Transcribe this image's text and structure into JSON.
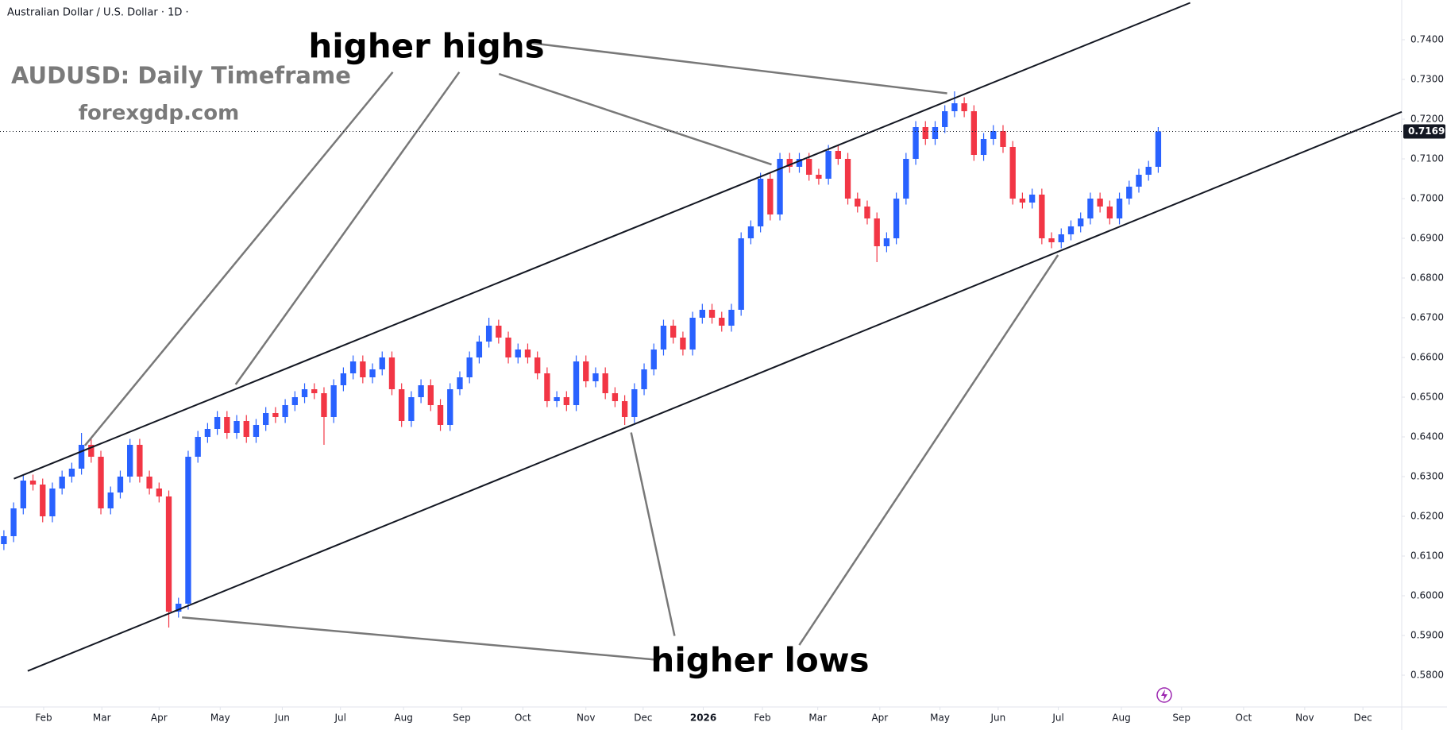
{
  "chart_data": {
    "type": "candlestick",
    "header": "Australian Dollar / U.S. Dollar · 1D ·",
    "title": "AUDUSD: Daily Timeframe",
    "subtitle": "forexgdp.com",
    "annotations": [
      "higher highs",
      "higher lows"
    ],
    "up_color": "#2962ff",
    "down_color": "#f23645",
    "grid": false,
    "open": [
      0.613,
      0.615,
      0.622,
      0.629,
      0.628,
      0.62,
      0.627,
      0.63,
      0.632,
      0.638,
      0.635,
      0.622,
      0.626,
      0.63,
      0.638,
      0.63,
      0.627,
      0.625,
      0.596,
      0.598,
      0.635,
      0.64,
      0.642,
      0.645,
      0.641,
      0.644,
      0.64,
      0.643,
      0.646,
      0.645,
      0.648,
      0.65,
      0.652,
      0.651,
      0.645,
      0.653,
      0.656,
      0.659,
      0.655,
      0.657,
      0.66,
      0.652,
      0.644,
      0.65,
      0.653,
      0.648,
      0.643,
      0.652,
      0.655,
      0.66,
      0.664,
      0.668,
      0.665,
      0.66,
      0.662,
      0.66,
      0.656,
      0.649,
      0.65,
      0.648,
      0.659,
      0.654,
      0.656,
      0.651,
      0.649,
      0.645,
      0.652,
      0.657,
      0.662,
      0.668,
      0.665,
      0.662,
      0.67,
      0.672,
      0.67,
      0.668,
      0.672,
      0.69,
      0.693,
      0.705,
      0.696,
      0.71,
      0.708,
      0.71,
      0.706,
      0.705,
      0.712,
      0.71,
      0.7,
      0.698,
      0.695,
      0.688,
      0.69,
      0.7,
      0.71,
      0.718,
      0.715,
      0.718,
      0.722,
      0.724,
      0.722,
      0.711,
      0.715,
      0.717,
      0.713,
      0.7,
      0.699,
      0.701,
      0.69,
      0.689,
      0.691,
      0.693,
      0.695,
      0.7,
      0.698,
      0.695,
      0.7,
      0.703,
      0.706,
      0.708
    ],
    "high": [
      0.6165,
      0.6235,
      0.6305,
      0.6305,
      0.6295,
      0.6285,
      0.6315,
      0.6335,
      0.641,
      0.6395,
      0.6365,
      0.6275,
      0.6315,
      0.6395,
      0.6395,
      0.6315,
      0.6285,
      0.6265,
      0.5995,
      0.6365,
      0.6415,
      0.6435,
      0.6465,
      0.6465,
      0.6455,
      0.6455,
      0.6445,
      0.6475,
      0.6475,
      0.6495,
      0.6515,
      0.6535,
      0.6535,
      0.6525,
      0.6545,
      0.6575,
      0.6605,
      0.6605,
      0.6585,
      0.6615,
      0.6615,
      0.6535,
      0.6515,
      0.6545,
      0.6545,
      0.6495,
      0.6535,
      0.6565,
      0.6615,
      0.6655,
      0.67,
      0.6695,
      0.6665,
      0.6635,
      0.6635,
      0.6615,
      0.6575,
      0.6515,
      0.6515,
      0.6605,
      0.6605,
      0.6575,
      0.6575,
      0.6525,
      0.6505,
      0.6535,
      0.6585,
      0.6635,
      0.6695,
      0.6695,
      0.6665,
      0.6715,
      0.6735,
      0.6735,
      0.6715,
      0.6735,
      0.6915,
      0.6945,
      0.7065,
      0.7065,
      0.7115,
      0.7115,
      0.7115,
      0.7115,
      0.7075,
      0.7135,
      0.7135,
      0.7115,
      0.7015,
      0.6995,
      0.6965,
      0.6915,
      0.7015,
      0.7115,
      0.7195,
      0.7195,
      0.7195,
      0.7235,
      0.727,
      0.7255,
      0.7235,
      0.7165,
      0.7185,
      0.7185,
      0.7145,
      0.7015,
      0.7025,
      0.7025,
      0.6915,
      0.6925,
      0.6945,
      0.6965,
      0.7015,
      0.7015,
      0.6995,
      0.7015,
      0.7045,
      0.7075,
      0.7095,
      0.718
    ],
    "low": [
      0.6115,
      0.6135,
      0.6205,
      0.6265,
      0.6185,
      0.6185,
      0.6255,
      0.6285,
      0.6305,
      0.6335,
      0.6205,
      0.6205,
      0.6245,
      0.6285,
      0.6285,
      0.6255,
      0.6235,
      0.592,
      0.5945,
      0.5965,
      0.6335,
      0.6385,
      0.6405,
      0.6395,
      0.6395,
      0.6385,
      0.6385,
      0.6415,
      0.6435,
      0.6435,
      0.6465,
      0.6485,
      0.6495,
      0.638,
      0.6435,
      0.6515,
      0.6545,
      0.6535,
      0.6535,
      0.6555,
      0.6505,
      0.6425,
      0.6425,
      0.6485,
      0.6465,
      0.6415,
      0.6415,
      0.6505,
      0.6535,
      0.6585,
      0.6625,
      0.6635,
      0.6585,
      0.6585,
      0.6585,
      0.6545,
      0.6475,
      0.6475,
      0.6465,
      0.6465,
      0.6525,
      0.6525,
      0.6495,
      0.6475,
      0.643,
      0.6435,
      0.6505,
      0.6555,
      0.6605,
      0.6635,
      0.6605,
      0.6605,
      0.6685,
      0.6685,
      0.6665,
      0.6665,
      0.6705,
      0.6885,
      0.6915,
      0.6945,
      0.6945,
      0.7065,
      0.7065,
      0.7045,
      0.7035,
      0.7035,
      0.7085,
      0.6985,
      0.6965,
      0.6935,
      0.684,
      0.6865,
      0.6885,
      0.6985,
      0.7085,
      0.7135,
      0.7135,
      0.7165,
      0.7205,
      0.7205,
      0.7095,
      0.7095,
      0.7135,
      0.7115,
      0.6985,
      0.6975,
      0.6975,
      0.6885,
      0.6875,
      0.6875,
      0.6895,
      0.6915,
      0.6935,
      0.6965,
      0.6935,
      0.6935,
      0.6985,
      0.7015,
      0.7045,
      0.7065
    ],
    "close": [
      0.615,
      0.622,
      0.629,
      0.628,
      0.62,
      0.627,
      0.63,
      0.632,
      0.638,
      0.635,
      0.622,
      0.626,
      0.63,
      0.638,
      0.63,
      0.627,
      0.625,
      0.596,
      0.598,
      0.635,
      0.64,
      0.642,
      0.645,
      0.641,
      0.644,
      0.64,
      0.643,
      0.646,
      0.645,
      0.648,
      0.65,
      0.652,
      0.651,
      0.645,
      0.653,
      0.656,
      0.659,
      0.655,
      0.657,
      0.66,
      0.652,
      0.644,
      0.65,
      0.653,
      0.648,
      0.643,
      0.652,
      0.655,
      0.66,
      0.664,
      0.668,
      0.665,
      0.66,
      0.662,
      0.66,
      0.656,
      0.649,
      0.65,
      0.648,
      0.659,
      0.654,
      0.656,
      0.651,
      0.649,
      0.645,
      0.652,
      0.657,
      0.662,
      0.668,
      0.665,
      0.662,
      0.67,
      0.672,
      0.67,
      0.668,
      0.672,
      0.69,
      0.693,
      0.705,
      0.696,
      0.71,
      0.708,
      0.71,
      0.706,
      0.705,
      0.712,
      0.71,
      0.7,
      0.698,
      0.695,
      0.688,
      0.69,
      0.7,
      0.71,
      0.718,
      0.715,
      0.718,
      0.722,
      0.724,
      0.722,
      0.711,
      0.715,
      0.717,
      0.713,
      0.7,
      0.699,
      0.701,
      0.69,
      0.689,
      0.691,
      0.693,
      0.695,
      0.7,
      0.698,
      0.695,
      0.7,
      0.703,
      0.706,
      0.708,
      0.7169
    ],
    "xlim": [
      -0.4,
      144.1
    ],
    "xticks": [
      {
        "value": 4.1,
        "label": "Feb"
      },
      {
        "value": 10.1,
        "label": "Mar"
      },
      {
        "value": 16.0,
        "label": "Apr"
      },
      {
        "value": 22.3,
        "label": "May"
      },
      {
        "value": 28.7,
        "label": "Jun"
      },
      {
        "value": 34.7,
        "label": "Jul"
      },
      {
        "value": 41.2,
        "label": "Aug"
      },
      {
        "value": 47.2,
        "label": "Sep"
      },
      {
        "value": 53.5,
        "label": "Oct"
      },
      {
        "value": 60.0,
        "label": "Nov"
      },
      {
        "value": 65.9,
        "label": "Dec"
      },
      {
        "value": 72.1,
        "label": "2026"
      },
      {
        "value": 78.2,
        "label": "Feb"
      },
      {
        "value": 83.9,
        "label": "Mar"
      },
      {
        "value": 90.3,
        "label": "Apr"
      },
      {
        "value": 96.5,
        "label": "May"
      },
      {
        "value": 102.5,
        "label": "Jun"
      },
      {
        "value": 108.7,
        "label": "Jul"
      },
      {
        "value": 115.2,
        "label": "Aug"
      },
      {
        "value": 121.4,
        "label": "Sep"
      },
      {
        "value": 127.8,
        "label": "Oct"
      },
      {
        "value": 134.1,
        "label": "Nov"
      },
      {
        "value": 140.1,
        "label": "Dec"
      }
    ],
    "ylim": [
      0.572,
      0.75
    ],
    "yticks": [
      {
        "value": 0.74,
        "label": "0.7400"
      },
      {
        "value": 0.73,
        "label": "0.7300"
      },
      {
        "value": 0.72,
        "label": "0.7200"
      },
      {
        "value": 0.71,
        "label": "0.7100"
      },
      {
        "value": 0.7,
        "label": "0.7000"
      },
      {
        "value": 0.69,
        "label": "0.6900"
      },
      {
        "value": 0.68,
        "label": "0.6800"
      },
      {
        "value": 0.67,
        "label": "0.6700"
      },
      {
        "value": 0.66,
        "label": "0.6600"
      },
      {
        "value": 0.65,
        "label": "0.6500"
      },
      {
        "value": 0.64,
        "label": "0.6400"
      },
      {
        "value": 0.63,
        "label": "0.6300"
      },
      {
        "value": 0.62,
        "label": "0.6200"
      },
      {
        "value": 0.61,
        "label": "0.6100"
      },
      {
        "value": 0.6,
        "label": "0.6000"
      },
      {
        "value": 0.59,
        "label": "0.5900"
      },
      {
        "value": 0.58,
        "label": "0.5800"
      }
    ]
  }
}
